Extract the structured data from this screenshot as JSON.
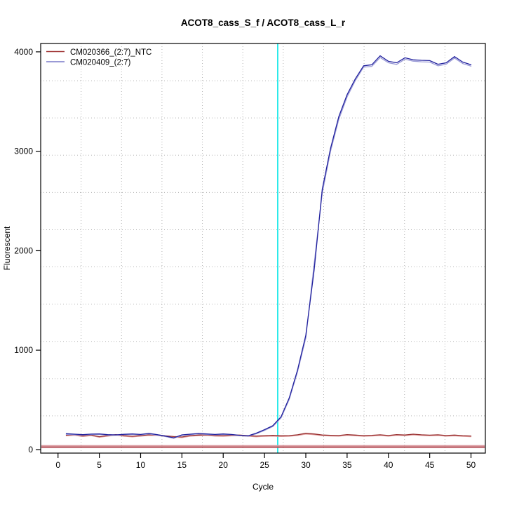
{
  "chart_data": {
    "type": "line",
    "title": "ACOT8_cass_S_f / ACOT8_cass_L_r",
    "xlabel": "Cycle",
    "ylabel": "Fluorescent",
    "x_ticks": [
      0,
      5,
      10,
      15,
      20,
      25,
      30,
      35,
      40,
      45,
      50
    ],
    "y_ticks": [
      0,
      1000,
      2000,
      3000,
      4000
    ],
    "xlim": [
      -2.1,
      51.74
    ],
    "ylim": [
      -35.3,
      4084
    ],
    "grid": {
      "nx": 11,
      "ny": 11,
      "color": "#b3b3b3",
      "style": "dotted"
    },
    "ct_line": {
      "cycle": 26.6,
      "color": "#00e6e6"
    },
    "zero_band": {
      "values": [
        38,
        24
      ],
      "colors": [
        "#d9959b",
        "#b4525a"
      ]
    },
    "legend": {
      "position": "top-left",
      "items": [
        {
          "label": "CM020366_(2:7)_NTC",
          "color": "#a03434"
        },
        {
          "label": "CM020409_(2:7)",
          "color": "#7878c8"
        }
      ]
    },
    "cycles": [
      1,
      2,
      3,
      4,
      5,
      6,
      7,
      8,
      9,
      10,
      11,
      12,
      13,
      14,
      15,
      16,
      17,
      18,
      19,
      20,
      21,
      22,
      23,
      24,
      25,
      26,
      27,
      28,
      29,
      30,
      31,
      32,
      33,
      34,
      35,
      36,
      37,
      38,
      39,
      40,
      41,
      42,
      43,
      44,
      45,
      46,
      47,
      48,
      49,
      50
    ],
    "series": [
      {
        "name": "CM020366_(2:7)_NTC",
        "colors": {
          "main": "#993333",
          "replicate": "#dd9999"
        },
        "values": [
          145,
          150,
          138,
          147,
          130,
          141,
          151,
          140,
          134,
          141,
          149,
          148,
          138,
          131,
          127,
          141,
          146,
          149,
          142,
          140,
          144,
          146,
          140,
          136,
          140,
          143,
          139,
          141,
          149,
          164,
          157,
          147,
          144,
          142,
          151,
          146,
          141,
          144,
          149,
          142,
          151,
          147,
          155,
          149,
          145,
          149,
          142,
          146,
          140,
          137
        ],
        "replicate_values": [
          139,
          144,
          132,
          141,
          125,
          135,
          145,
          134,
          128,
          135,
          143,
          142,
          132,
          125,
          121,
          135,
          140,
          143,
          136,
          134,
          138,
          140,
          134,
          129,
          133,
          136,
          132,
          134,
          142,
          156,
          150,
          140,
          137,
          135,
          144,
          139,
          134,
          137,
          142,
          135,
          144,
          140,
          148,
          142,
          138,
          142,
          135,
          139,
          133,
          130
        ]
      },
      {
        "name": "CM020409_(2:7)",
        "colors": {
          "main": "#22229e",
          "replicate": "#9a9ad6"
        },
        "values": [
          160,
          155,
          150,
          156,
          158,
          150,
          148,
          154,
          158,
          152,
          163,
          150,
          136,
          118,
          148,
          155,
          162,
          157,
          152,
          157,
          152,
          144,
          138,
          165,
          200,
          240,
          330,
          520,
          800,
          1150,
          1800,
          2620,
          3030,
          3350,
          3570,
          3730,
          3860,
          3870,
          3960,
          3905,
          3890,
          3940,
          3920,
          3915,
          3912,
          3875,
          3890,
          3952,
          3897,
          3870
        ],
        "replicate_values": [
          153,
          149,
          146,
          151,
          153,
          146,
          144,
          150,
          153,
          148,
          157,
          145,
          131,
          114,
          143,
          150,
          157,
          152,
          148,
          152,
          148,
          140,
          134,
          159,
          193,
          231,
          319,
          506,
          782,
          1122,
          1862,
          2582,
          3002,
          3322,
          3547,
          3712,
          3846,
          3854,
          3942,
          3890,
          3874,
          3926,
          3906,
          3900,
          3897,
          3860,
          3876,
          3937,
          3882,
          3856
        ]
      }
    ]
  }
}
